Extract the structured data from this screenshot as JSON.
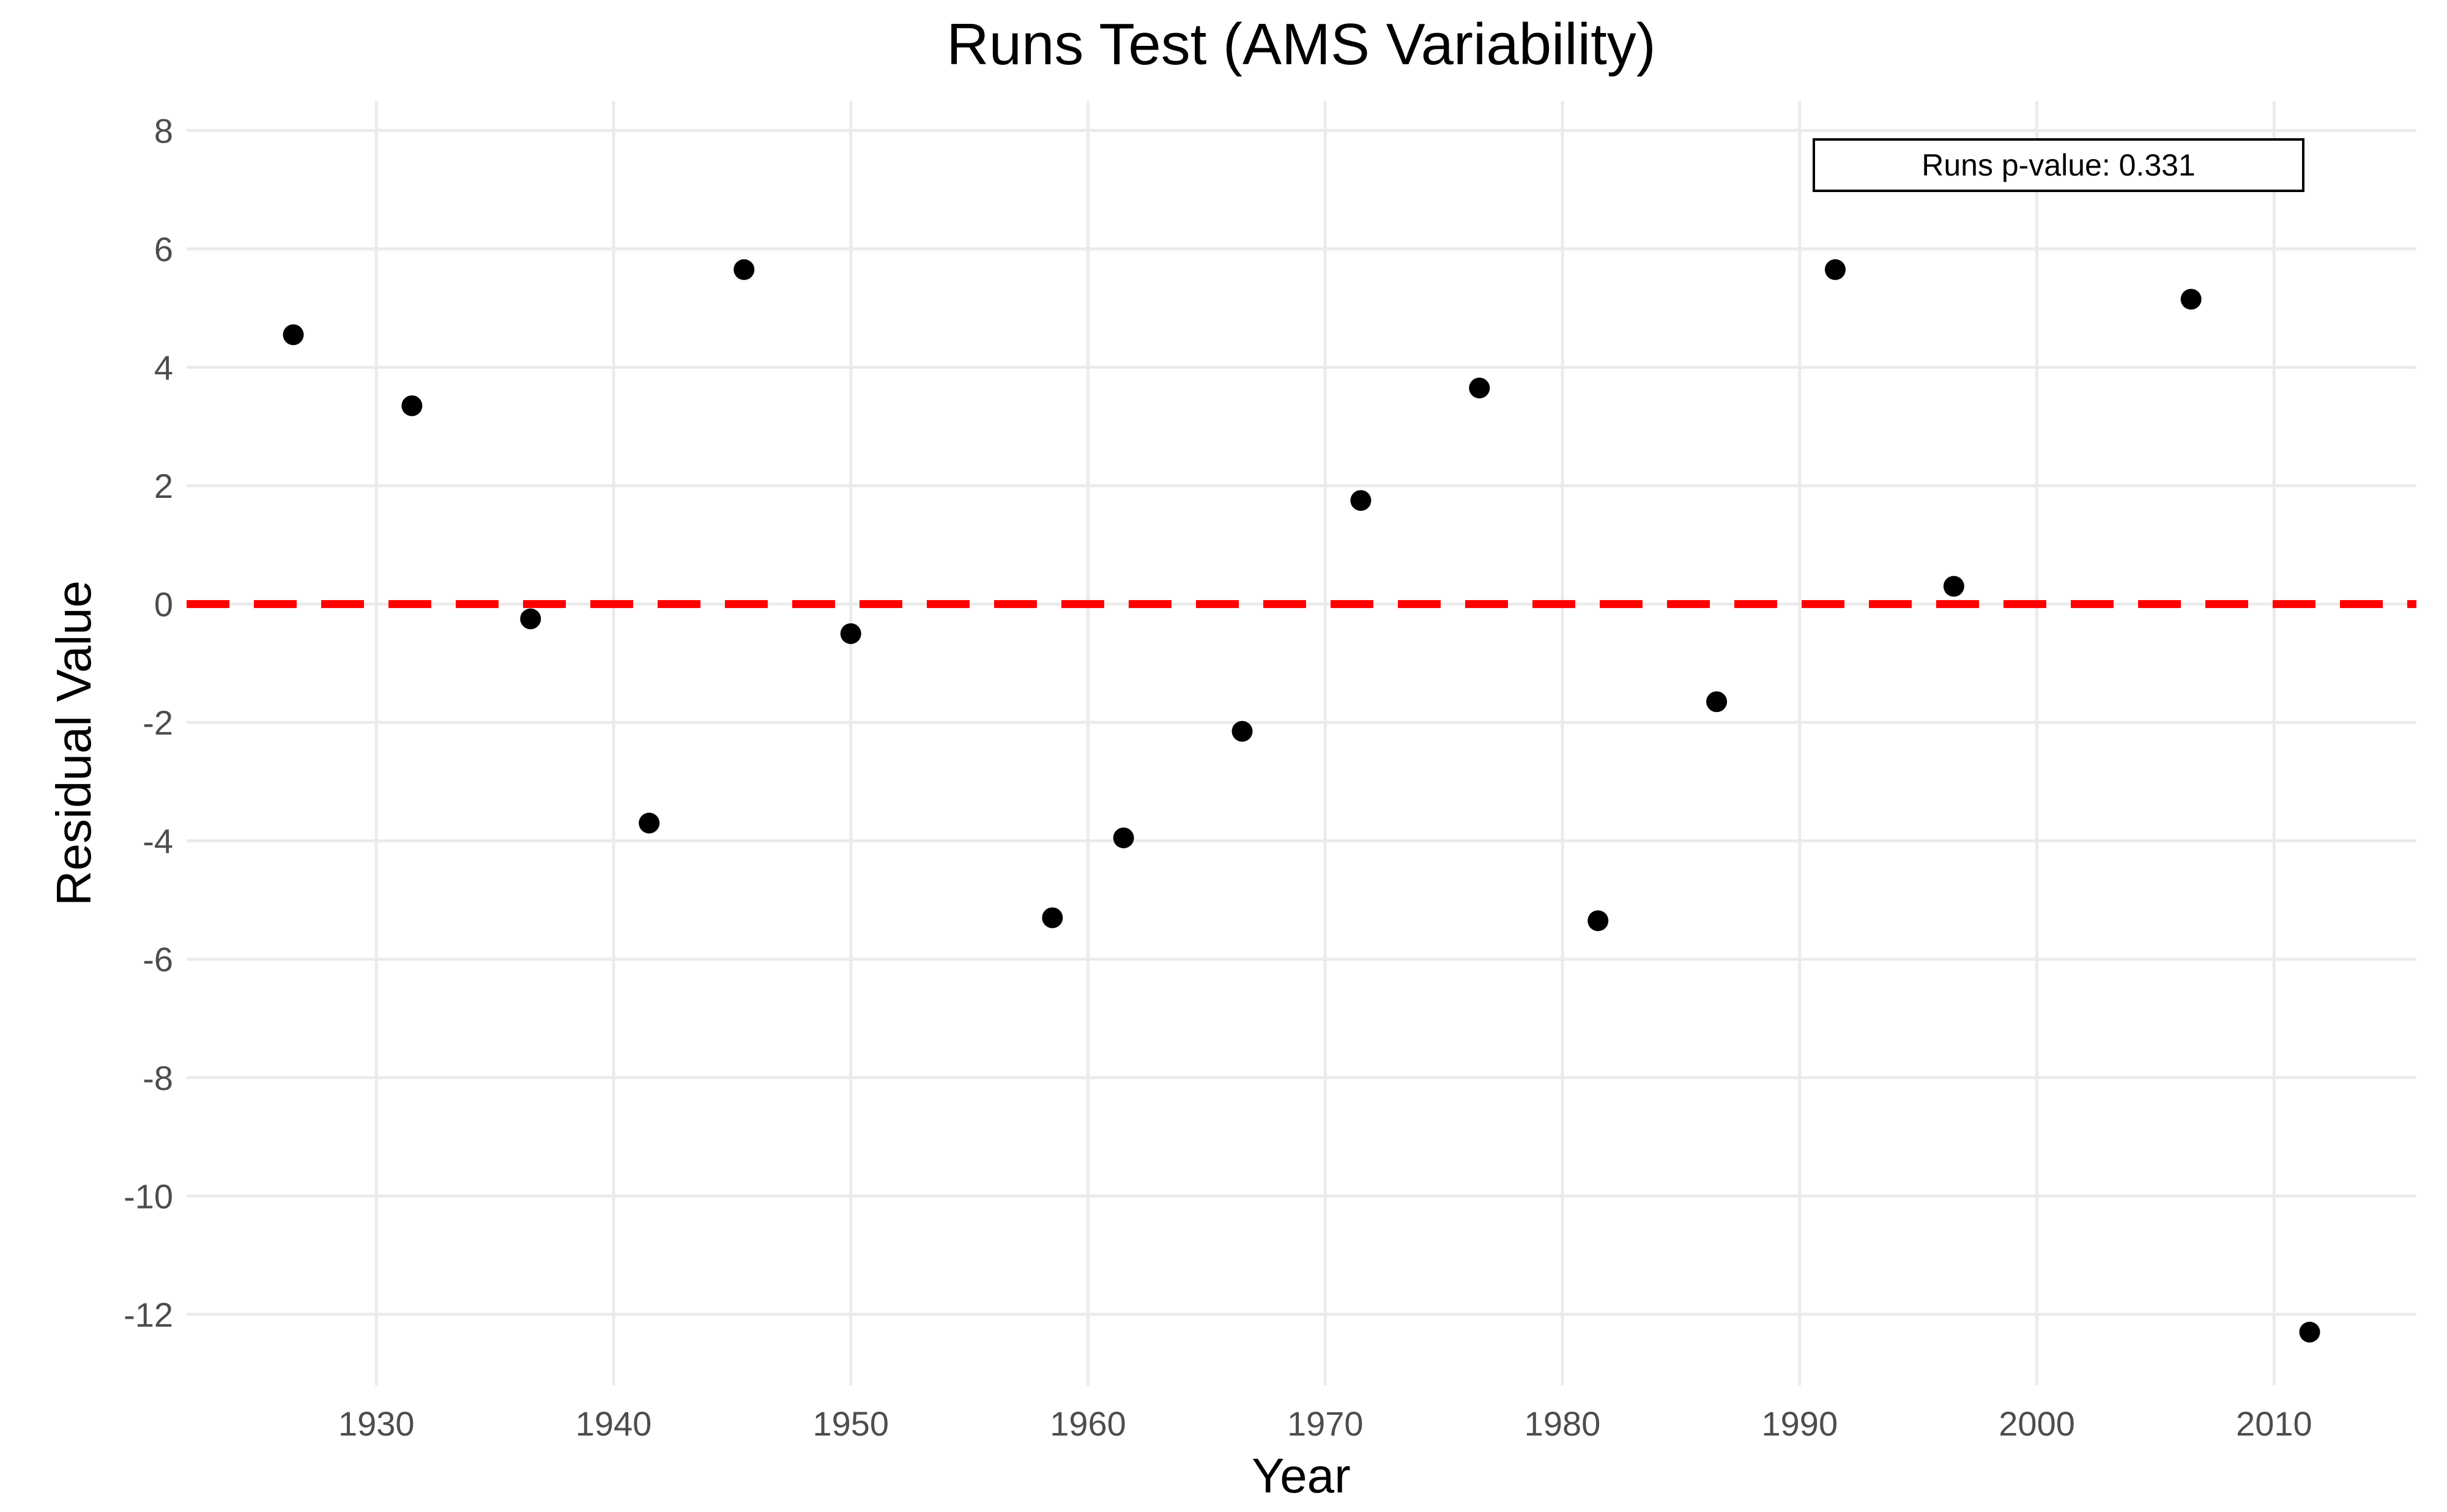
{
  "chart_data": {
    "type": "scatter",
    "title": "Runs Test (AMS Variability)",
    "xlabel": "Year",
    "ylabel": "Residual Value",
    "xlim": [
      1922,
      2016
    ],
    "ylim": [
      -13.2,
      8.5
    ],
    "x_ticks": [
      1930,
      1940,
      1950,
      1960,
      1970,
      1980,
      1990,
      2000,
      2010
    ],
    "y_ticks": [
      8,
      6,
      4,
      2,
      0,
      -2,
      -4,
      -6,
      -8,
      -10,
      -12
    ],
    "grid": true,
    "points": [
      {
        "x": 1926.5,
        "y": 4.55
      },
      {
        "x": 1931.5,
        "y": 3.35
      },
      {
        "x": 1936.5,
        "y": -0.25
      },
      {
        "x": 1941.5,
        "y": -3.7
      },
      {
        "x": 1945.5,
        "y": 5.65
      },
      {
        "x": 1950.0,
        "y": -0.5
      },
      {
        "x": 1958.5,
        "y": -5.3
      },
      {
        "x": 1961.5,
        "y": -3.95
      },
      {
        "x": 1966.5,
        "y": -2.15
      },
      {
        "x": 1971.5,
        "y": 1.75
      },
      {
        "x": 1976.5,
        "y": 3.65
      },
      {
        "x": 1981.5,
        "y": -5.35
      },
      {
        "x": 1986.5,
        "y": -1.65
      },
      {
        "x": 1991.5,
        "y": 5.65
      },
      {
        "x": 1996.5,
        "y": 0.3
      },
      {
        "x": 2006.5,
        "y": 5.15
      },
      {
        "x": 2011.5,
        "y": -12.3
      }
    ],
    "reference_line": {
      "y": 0,
      "color": "#ff0000",
      "style": "dashed"
    },
    "annotation": {
      "text": "Runs p-value: 0.331",
      "position": "top-right"
    },
    "colors": {
      "points": "#000000",
      "reference": "#ff0000",
      "grid": "#ebebeb"
    }
  }
}
